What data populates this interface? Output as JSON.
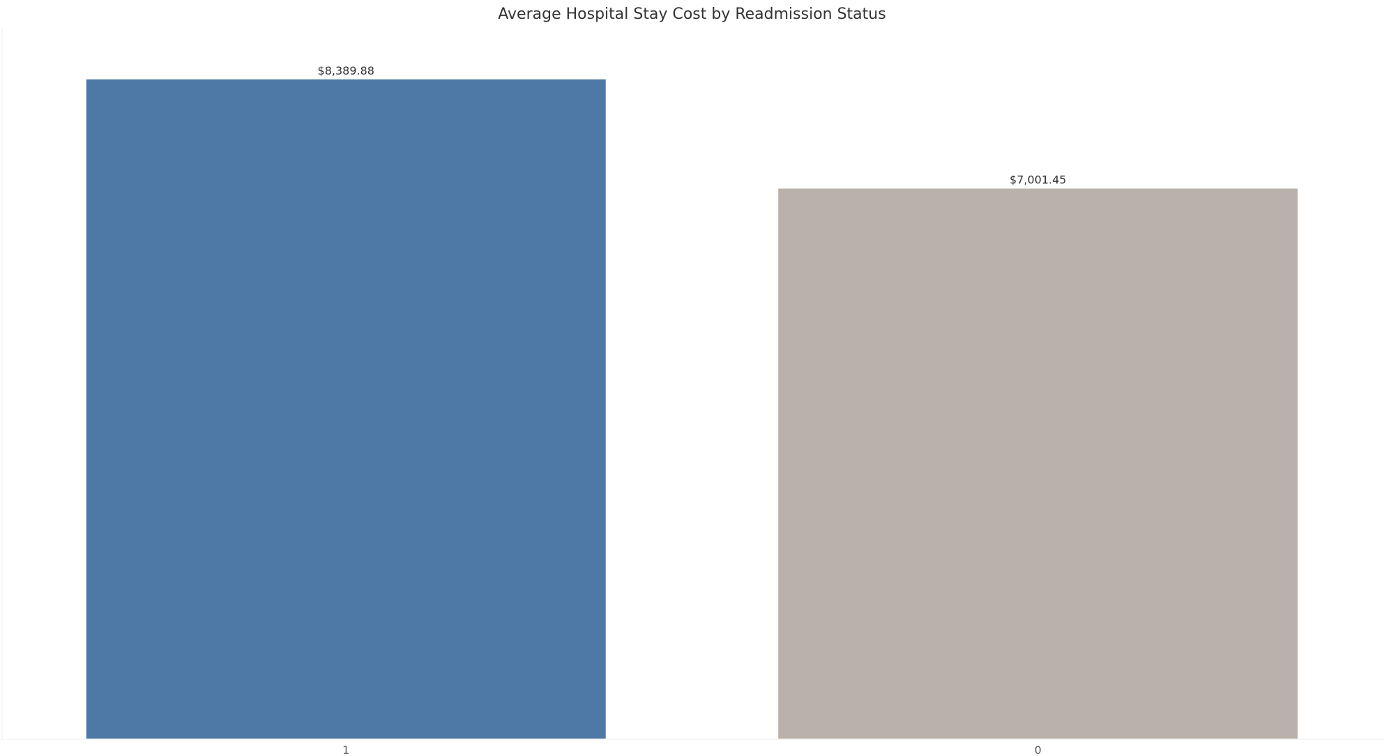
{
  "chart_data": {
    "type": "bar",
    "title": "Average Hospital Stay Cost by Readmission Status",
    "xlabel": "",
    "ylabel": "",
    "categories": [
      "1",
      "0"
    ],
    "values": [
      8389.88,
      7001.45
    ],
    "value_labels": [
      "$8,389.88",
      "$7,001.45"
    ],
    "colors": [
      "#4e79a7",
      "#bab0ac"
    ],
    "ylim": [
      0,
      8389.88
    ],
    "grid": false,
    "legend": "none"
  }
}
